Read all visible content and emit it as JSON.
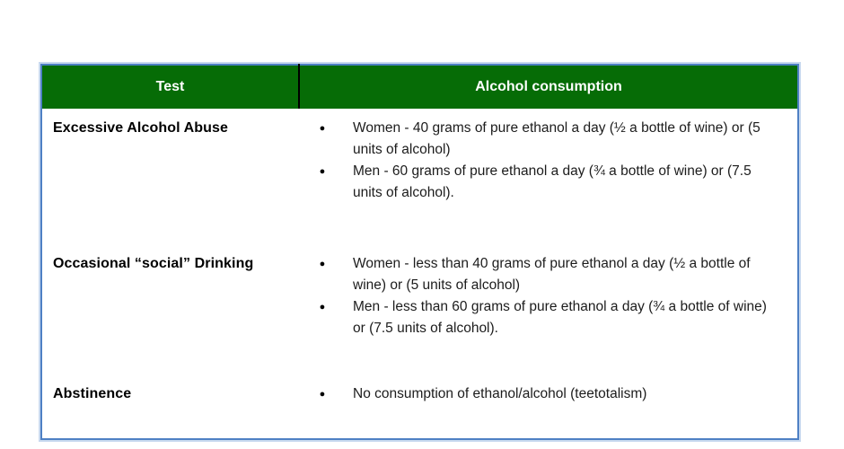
{
  "table": {
    "headers": [
      "Test",
      "Alcohol consumption"
    ],
    "rows": [
      {
        "test": "Excessive Alcohol Abuse",
        "items": [
          "Women - 40 grams of pure ethanol a day (½ a bottle of wine) or (5 units of alcohol)",
          "Men - 60 grams of pure ethanol a day (¾ a bottle of wine) or (7.5 units of alcohol)."
        ]
      },
      {
        "test": "Occasional “social” Drinking",
        "items": [
          "Women - less than 40 grams of pure ethanol a day (½ a bottle of wine) or  (5 units of alcohol)",
          "Men - less than 60 grams of pure ethanol a day (¾ a bottle of wine) or (7.5 units of alcohol)."
        ]
      },
      {
        "test": "Abstinence",
        "items": [
          "No consumption of ethanol/alcohol (teetotalism)"
        ]
      }
    ],
    "bullet_glyph": "●",
    "colors": {
      "header_background": "#066c06",
      "header_text": "#ffffff",
      "outer_and_row_border": "#4e80c4",
      "column_divider": "#000000",
      "body_text": "#1c1c1c"
    }
  }
}
